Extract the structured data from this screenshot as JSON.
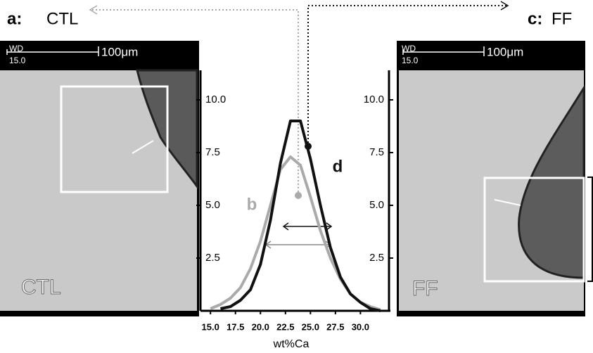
{
  "chart_data": {
    "type": "line",
    "x_label": "wt%Ca",
    "xlim": [
      14,
      33
    ],
    "ylim": [
      0,
      11.4
    ],
    "xticks": [
      {
        "value": 15,
        "label": "15.0"
      },
      17.5,
      {
        "value": 20,
        "label": "20.0"
      },
      22.5,
      {
        "value": 25,
        "label": "25.0"
      },
      27.5,
      {
        "value": 30,
        "label": "30.0"
      }
    ],
    "yticks": [
      2.5,
      {
        "value": 5,
        "label": "5.0"
      },
      7.5,
      {
        "value": 10,
        "label": "10.0"
      }
    ],
    "series": [
      {
        "name": "b",
        "color": "#aaaaaa",
        "x": [
          15,
          16,
          17,
          18,
          19,
          20,
          21,
          22,
          23,
          24,
          25,
          26,
          27,
          28,
          29,
          30,
          31,
          32
        ],
        "values": [
          0.1,
          0.3,
          0.6,
          1.1,
          2.0,
          3.3,
          5.0,
          6.7,
          7.3,
          6.9,
          5.4,
          3.8,
          2.5,
          1.5,
          0.8,
          0.4,
          0.2,
          0.05
        ]
      },
      {
        "name": "d",
        "color": "#111111",
        "x": [
          16,
          17,
          18,
          19,
          20,
          21,
          22,
          23,
          24,
          25,
          26,
          27,
          28,
          29,
          30,
          31,
          32
        ],
        "values": [
          0.1,
          0.2,
          0.5,
          1.0,
          2.2,
          4.3,
          7.0,
          9.0,
          9.0,
          7.2,
          5.0,
          3.0,
          1.6,
          0.8,
          0.4,
          0.1,
          0
        ]
      }
    ]
  },
  "panels": [
    {
      "letter": "a:",
      "title": "CTL",
      "wd": "WD",
      "wd_value": "15.0",
      "scale": "100μm",
      "label": "CTL"
    },
    {
      "letter": "c:",
      "title": "FF",
      "wd": "WD",
      "wd_value": "15.0",
      "scale": "100μm",
      "label": "FF"
    }
  ]
}
